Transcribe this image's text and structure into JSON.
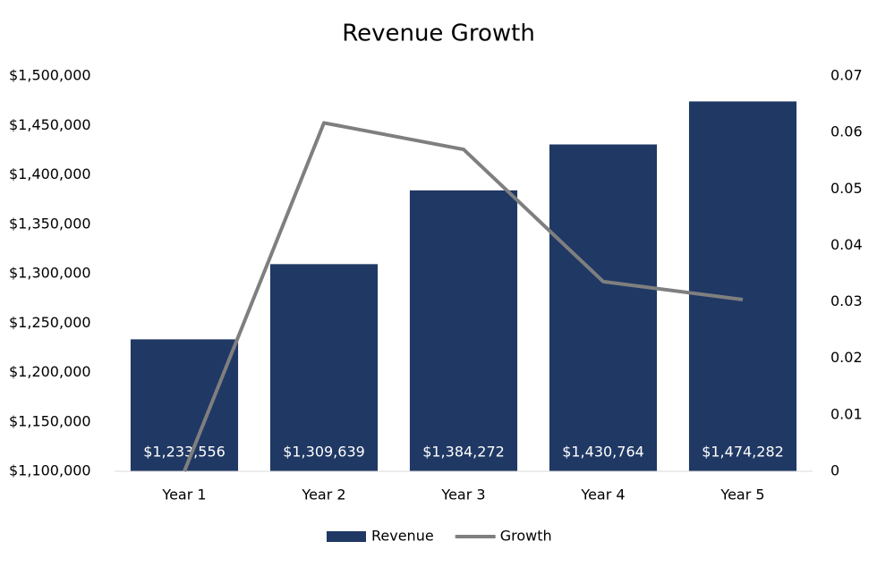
{
  "chart_data": {
    "type": "bar_line",
    "title": "Revenue Growth",
    "categories": [
      "Year 1",
      "Year 2",
      "Year 3",
      "Year 4",
      "Year 5"
    ],
    "series": [
      {
        "name": "Revenue",
        "color": "#203864",
        "values": [
          1233556,
          1309639,
          1384272,
          1430764,
          1474282
        ],
        "value_labels": [
          "$1,233,556",
          "$1,309,639",
          "$1,384,272",
          "$1,430,764",
          "$1,474,282"
        ]
      },
      {
        "name": "Growth",
        "color": "#7f7f7f",
        "axis": "y2",
        "values": [
          0,
          0.0617,
          0.057,
          0.0336,
          0.0304
        ]
      }
    ],
    "ylim": [
      1100000,
      1500000
    ],
    "yticks": [
      {
        "value": 1100000,
        "label": "$1,100,000"
      },
      {
        "value": 1150000,
        "label": "$1,150,000"
      },
      {
        "value": 1200000,
        "label": "$1,200,000"
      },
      {
        "value": 1250000,
        "label": "$1,250,000"
      },
      {
        "value": 1300000,
        "label": "$1,300,000"
      },
      {
        "value": 1350000,
        "label": "$1,350,000"
      },
      {
        "value": 1400000,
        "label": "$1,400,000"
      },
      {
        "value": 1450000,
        "label": "$1,450,000"
      },
      {
        "value": 1500000,
        "label": "$1,500,000"
      }
    ],
    "y2lim": [
      0,
      0.07
    ],
    "y2ticks": [
      0,
      0.01,
      0.02,
      0.03,
      0.04,
      0.05,
      0.06,
      0.07
    ],
    "legend": "bottom"
  }
}
